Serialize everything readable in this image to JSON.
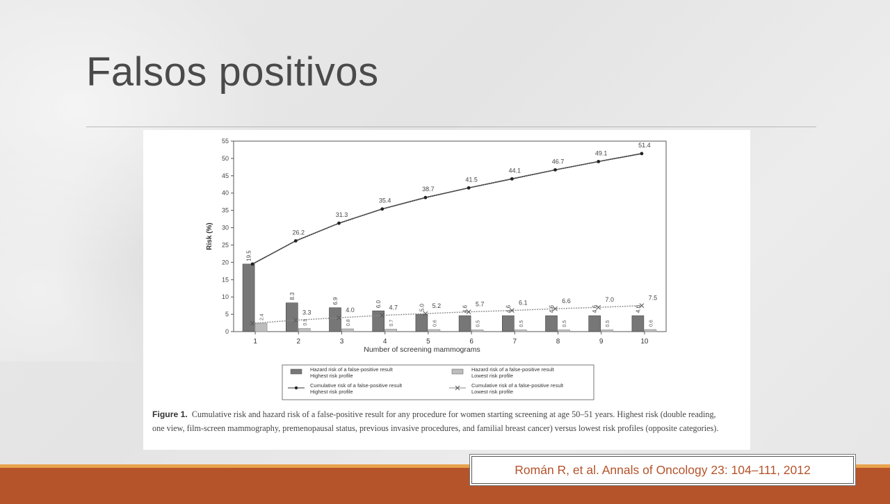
{
  "slide": {
    "title": "Falsos positivos",
    "citation": "Román R, et al. Annals of Oncology 23: 104–111, 2012"
  },
  "figure": {
    "caption_label": "Figure 1.",
    "caption_text": "Cumulative risk and hazard risk of a false-positive result for any procedure for women starting screening at age 50–51 years. Highest risk (double reading, one view, film-screen mammography, premenopausal status, previous invasive procedures, and familial breast cancer) versus lowest risk profiles (opposite categories)."
  },
  "chart_data": {
    "type": "bar",
    "title": "",
    "xlabel": "Number of screening mammograms",
    "ylabel": "Risk (%)",
    "ylim": [
      0,
      55
    ],
    "yticks": [
      0,
      5,
      10,
      15,
      20,
      25,
      30,
      35,
      40,
      45,
      50,
      55
    ],
    "categories": [
      "1",
      "2",
      "3",
      "4",
      "5",
      "6",
      "7",
      "8",
      "9",
      "10"
    ],
    "series": [
      {
        "name": "Hazard risk of a false-positive result Highest risk profile",
        "legend_line1": "Hazard risk of a false-positive result",
        "legend_line2": "Highest risk profile",
        "kind": "bar",
        "color": "#777777",
        "values": [
          19.5,
          8.3,
          6.9,
          6.0,
          5.0,
          4.6,
          4.6,
          4.6,
          4.6,
          4.6
        ],
        "labels": [
          "19.5",
          "8.3",
          "6.9",
          "6.0",
          "5.0",
          "4.6",
          "4.6",
          "4.6",
          "4.6",
          "4.6"
        ]
      },
      {
        "name": "Hazard risk of a false-positive result Lowest risk profile",
        "legend_line1": "Hazard risk of a false-positive result",
        "legend_line2": "Lowest risk profile",
        "kind": "bar",
        "color": "#bdbdbd",
        "values": [
          2.4,
          0.9,
          0.8,
          0.7,
          0.6,
          0.5,
          0.5,
          0.5,
          0.5,
          0.6
        ],
        "labels": [
          "2.4",
          "0.9",
          "0.8",
          "0.7",
          "0.6",
          "0.5",
          "0.5",
          "0.5",
          "0.5",
          "0.6"
        ]
      },
      {
        "name": "Cumulative risk of a false-positive result Highest risk profile",
        "legend_line1": "Cumulative risk of a false-positive result",
        "legend_line2": "Highest risk profile",
        "kind": "line",
        "marker": "dot",
        "color": "#333333",
        "values": [
          19.5,
          26.2,
          31.3,
          35.4,
          38.7,
          41.5,
          44.1,
          46.7,
          49.1,
          51.4
        ],
        "labels": [
          "19.5",
          "26.2",
          "31.3",
          "35.4",
          "38.7",
          "41.5",
          "44.1",
          "46.7",
          "49.1",
          "51.4"
        ]
      },
      {
        "name": "Cumulative risk of a false-positive result Lowest risk profile",
        "legend_line1": "Cumulative risk of a false-positive result",
        "legend_line2": "Lowest risk profile",
        "kind": "line",
        "marker": "x",
        "color": "#8a8a8a",
        "values": [
          2.4,
          3.3,
          4.0,
          4.7,
          5.2,
          5.7,
          6.1,
          6.6,
          7.0,
          7.5
        ],
        "labels": [
          "",
          "3.3",
          "4.0",
          "4.7",
          "5.2",
          "5.7",
          "6.1",
          "6.6",
          "7.0",
          "7.5"
        ]
      }
    ],
    "grid": false,
    "legend_position": "bottom"
  }
}
